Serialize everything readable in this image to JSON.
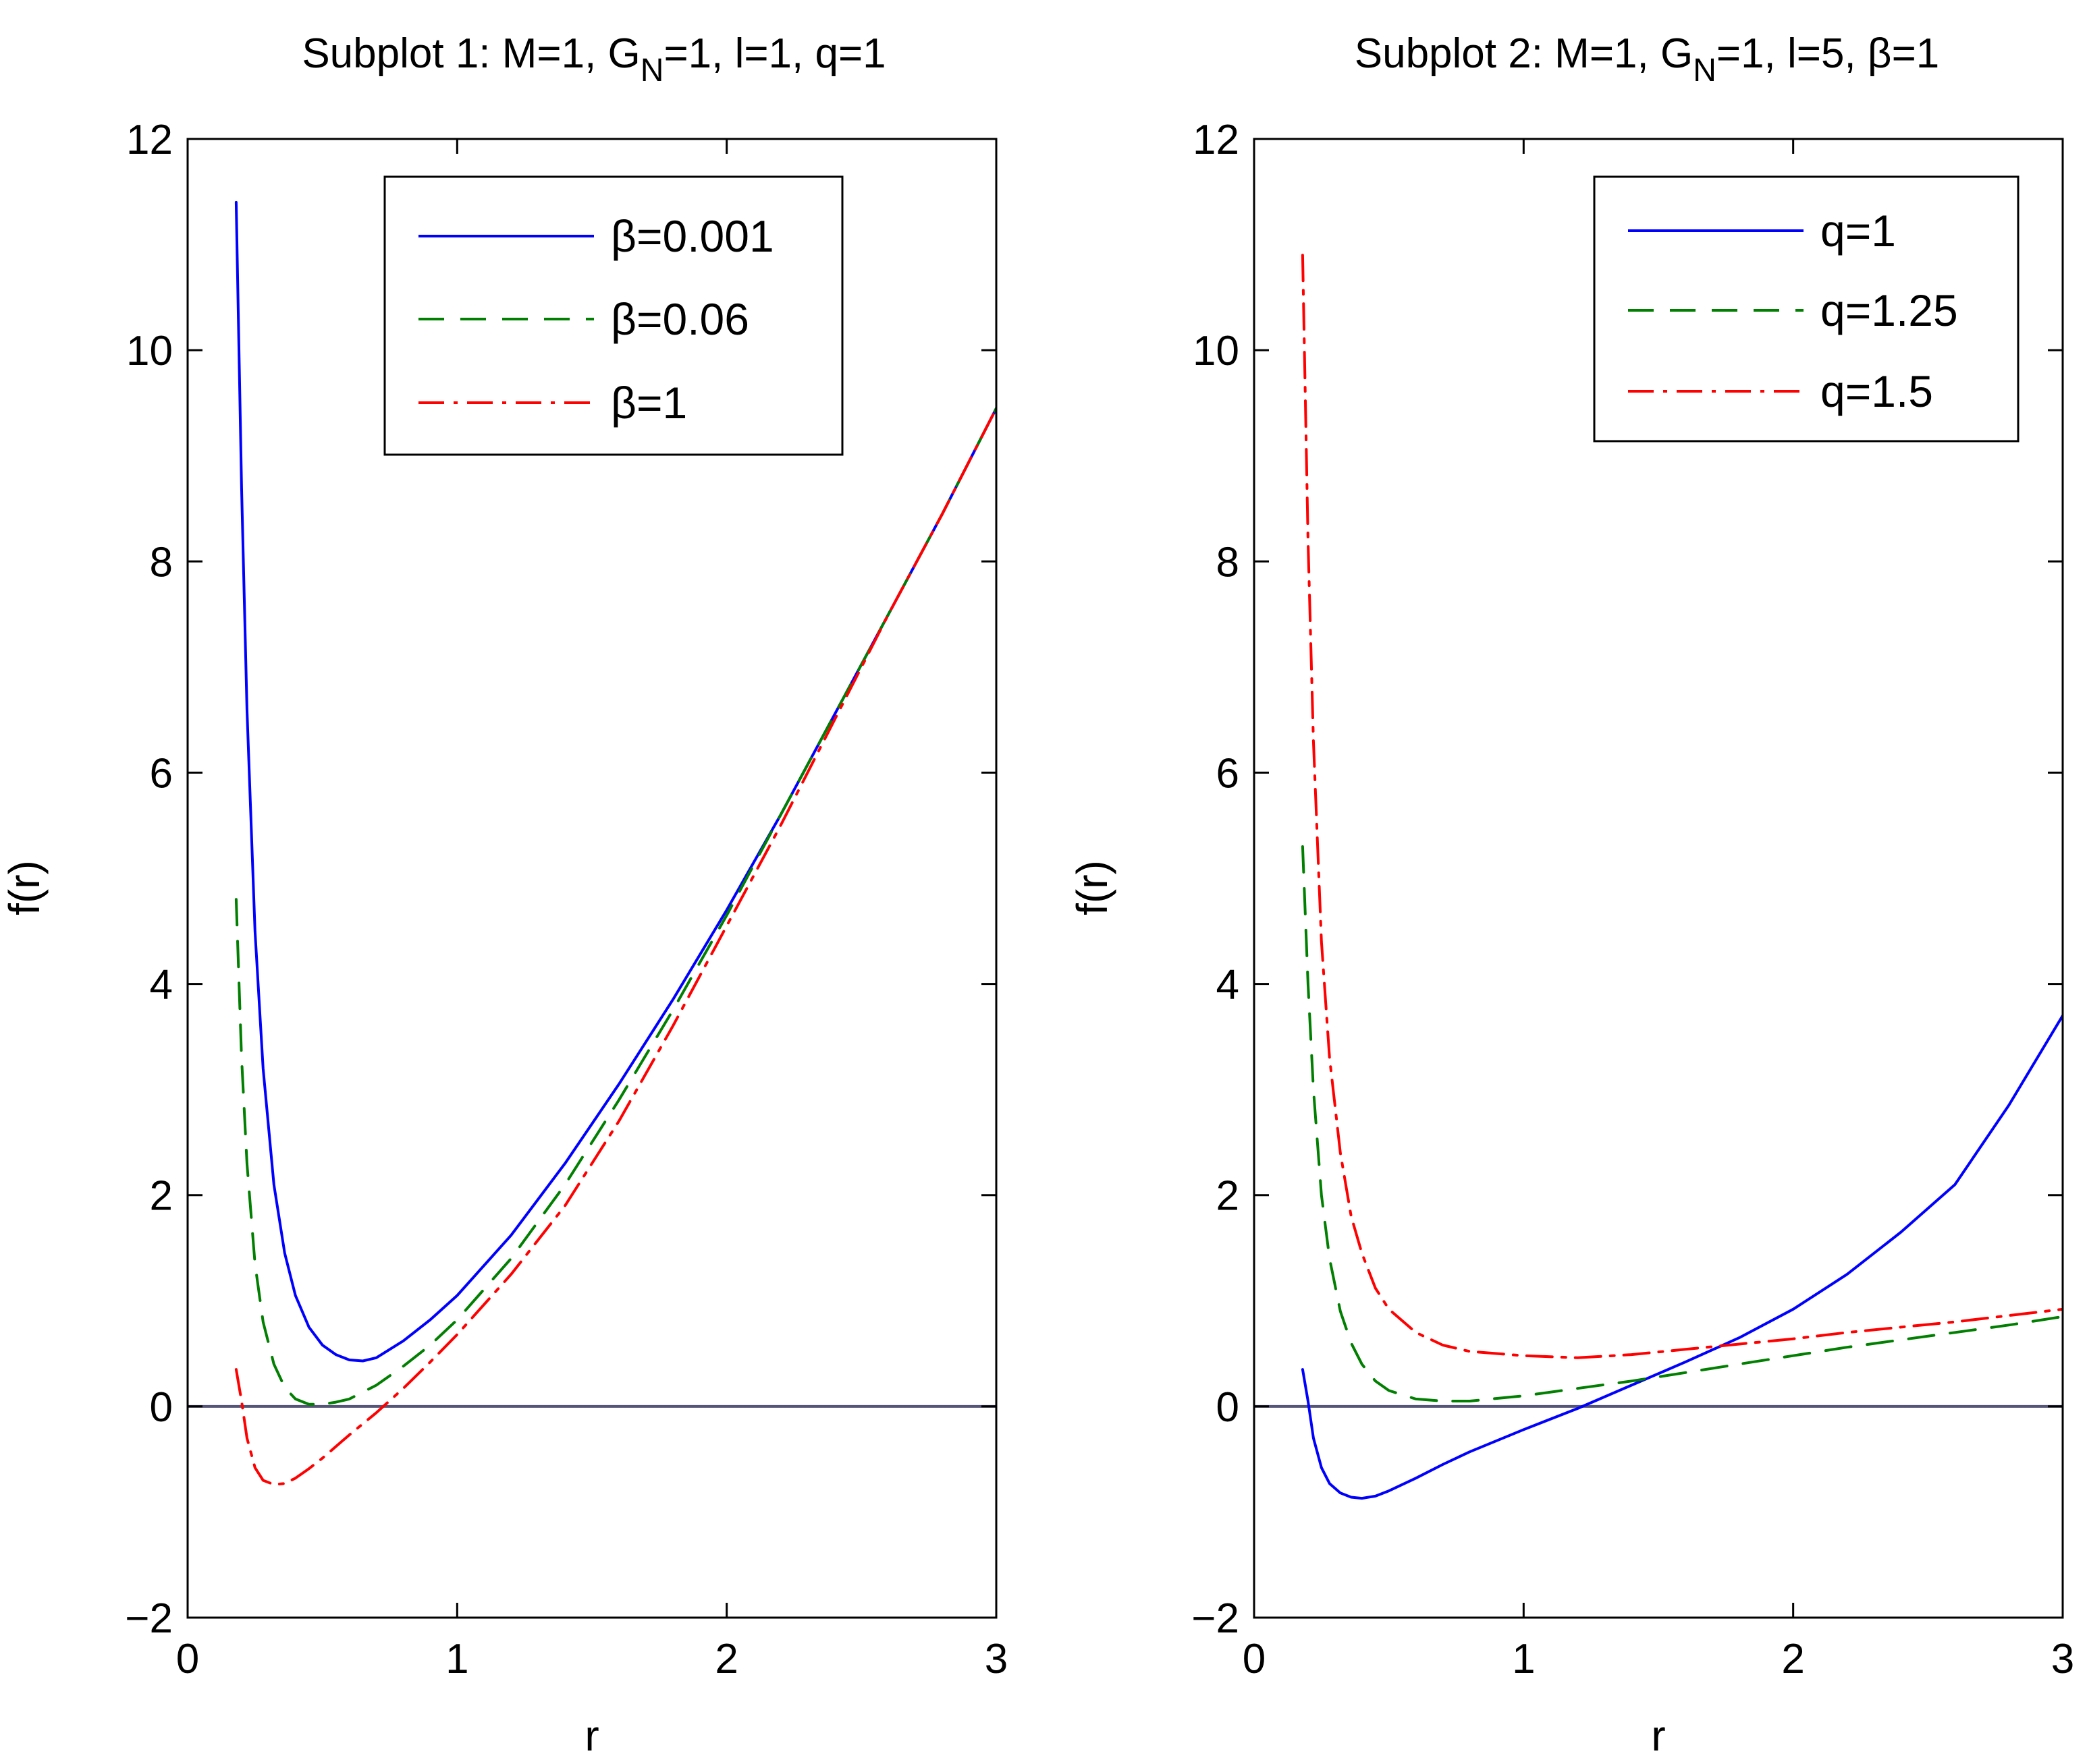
{
  "chart_data": [
    {
      "type": "line",
      "title": "Subplot 1: M=1, G",
      "title_subscript": "N",
      "title_rest": "=1, l=1, q=1",
      "xlabel": "r",
      "ylabel": "f(r)",
      "xlim": [
        0,
        3
      ],
      "ylim": [
        -2,
        12
      ],
      "xticks": [
        0,
        1,
        2,
        3
      ],
      "yticks": [
        -2,
        0,
        2,
        4,
        6,
        8,
        10,
        12
      ],
      "legend_position": "top-right",
      "reference_line": {
        "y": 0,
        "color": "#555577"
      },
      "series": [
        {
          "name": "β=0.001",
          "color": "#0000ff",
          "style": "solid",
          "x": [
            0.18,
            0.2,
            0.22,
            0.25,
            0.28,
            0.32,
            0.36,
            0.4,
            0.45,
            0.5,
            0.55,
            0.6,
            0.65,
            0.7,
            0.8,
            0.9,
            1.0,
            1.2,
            1.4,
            1.6,
            1.8,
            2.0,
            2.2,
            2.4,
            2.6,
            2.8,
            3.0
          ],
          "y": [
            11.4,
            8.7,
            6.6,
            4.5,
            3.2,
            2.1,
            1.45,
            1.05,
            0.75,
            0.58,
            0.49,
            0.44,
            0.43,
            0.46,
            0.62,
            0.82,
            1.05,
            1.62,
            2.3,
            3.05,
            3.85,
            4.7,
            5.6,
            6.55,
            7.5,
            8.45,
            9.45
          ]
        },
        {
          "name": "β=0.06",
          "color": "#007f00",
          "style": "dashed",
          "x": [
            0.18,
            0.2,
            0.22,
            0.25,
            0.28,
            0.32,
            0.36,
            0.4,
            0.45,
            0.5,
            0.55,
            0.6,
            0.7,
            0.8,
            0.9,
            1.0,
            1.2,
            1.4,
            1.6,
            1.8,
            2.0,
            2.2,
            2.4,
            2.6,
            2.8,
            3.0
          ],
          "y": [
            4.8,
            3.3,
            2.3,
            1.35,
            0.8,
            0.4,
            0.18,
            0.07,
            0.02,
            0.02,
            0.04,
            0.07,
            0.2,
            0.38,
            0.58,
            0.82,
            1.4,
            2.1,
            2.9,
            3.75,
            4.65,
            5.6,
            6.55,
            7.5,
            8.45,
            9.45
          ]
        },
        {
          "name": "β=1",
          "color": "#ff0000",
          "style": "dashdot",
          "x": [
            0.18,
            0.2,
            0.22,
            0.25,
            0.28,
            0.32,
            0.36,
            0.4,
            0.45,
            0.5,
            0.55,
            0.6,
            0.7,
            0.8,
            0.9,
            1.0,
            1.2,
            1.4,
            1.6,
            1.8,
            2.0,
            2.2,
            2.4,
            2.6,
            2.8,
            3.0
          ],
          "y": [
            0.35,
            0.05,
            -0.3,
            -0.58,
            -0.7,
            -0.74,
            -0.73,
            -0.68,
            -0.59,
            -0.49,
            -0.38,
            -0.27,
            -0.06,
            0.17,
            0.42,
            0.68,
            1.25,
            1.9,
            2.7,
            3.6,
            4.55,
            5.5,
            6.5,
            7.5,
            8.45,
            9.45
          ]
        }
      ]
    },
    {
      "type": "line",
      "title": "Subplot 2:  M=1, G",
      "title_subscript": "N",
      "title_rest": "=1, l=5, β=1",
      "xlabel": "r",
      "ylabel": "f(r)",
      "xlim": [
        0,
        3
      ],
      "ylim": [
        -2,
        12
      ],
      "xticks": [
        0,
        1,
        2,
        3
      ],
      "yticks": [
        -2,
        0,
        2,
        4,
        6,
        8,
        10,
        12
      ],
      "legend_position": "top-right",
      "reference_line": {
        "y": 0,
        "color": "#555577"
      },
      "series": [
        {
          "name": "q=1",
          "color": "#0000ff",
          "style": "solid",
          "x": [
            0.18,
            0.2,
            0.22,
            0.25,
            0.28,
            0.32,
            0.36,
            0.4,
            0.45,
            0.5,
            0.6,
            0.7,
            0.8,
            1.0,
            1.2,
            1.4,
            1.6,
            1.8,
            2.0,
            2.2,
            2.4,
            2.6,
            2.8,
            3.0
          ],
          "y": [
            0.35,
            0.05,
            -0.3,
            -0.58,
            -0.73,
            -0.82,
            -0.86,
            -0.87,
            -0.85,
            -0.8,
            -0.68,
            -0.55,
            -0.43,
            -0.22,
            -0.02,
            0.2,
            0.42,
            0.65,
            0.92,
            1.25,
            1.65,
            2.1,
            2.85,
            3.7
          ]
        },
        {
          "name": "q=1.25",
          "color": "#007f00",
          "style": "dashed",
          "x": [
            0.18,
            0.2,
            0.22,
            0.25,
            0.28,
            0.32,
            0.36,
            0.4,
            0.45,
            0.5,
            0.6,
            0.7,
            0.8,
            1.0,
            1.2,
            1.4,
            1.6,
            1.8,
            2.0,
            2.2,
            2.4,
            2.6,
            2.8,
            3.0
          ],
          "y": [
            5.3,
            4.0,
            3.0,
            2.0,
            1.4,
            0.9,
            0.6,
            0.4,
            0.24,
            0.15,
            0.07,
            0.05,
            0.05,
            0.1,
            0.17,
            0.24,
            0.32,
            0.4,
            0.48,
            0.56,
            0.63,
            0.7,
            0.77,
            0.85
          ]
        },
        {
          "name": "q=1.5",
          "color": "#ff0000",
          "style": "dashdot",
          "x": [
            0.18,
            0.2,
            0.22,
            0.25,
            0.28,
            0.32,
            0.36,
            0.4,
            0.45,
            0.5,
            0.6,
            0.7,
            0.8,
            1.0,
            1.2,
            1.4,
            1.6,
            1.8,
            2.0,
            2.2,
            2.4,
            2.6,
            2.8,
            3.0
          ],
          "y": [
            10.9,
            8.2,
            6.3,
            4.4,
            3.3,
            2.4,
            1.8,
            1.45,
            1.12,
            0.92,
            0.7,
            0.58,
            0.52,
            0.48,
            0.46,
            0.49,
            0.54,
            0.59,
            0.64,
            0.7,
            0.75,
            0.8,
            0.86,
            0.92
          ]
        }
      ]
    }
  ]
}
